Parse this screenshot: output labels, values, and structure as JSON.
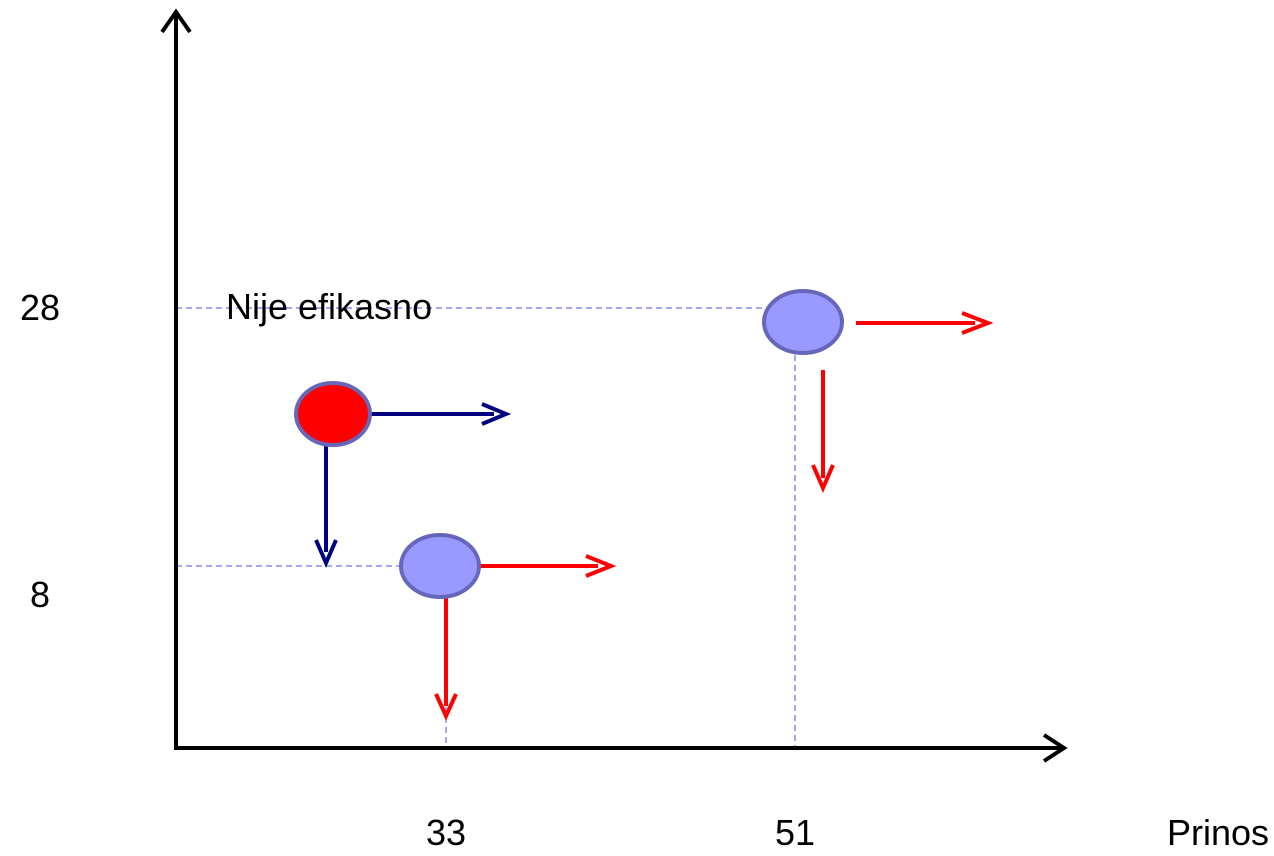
{
  "axes": {
    "y_ticks": [
      "28",
      "8"
    ],
    "x_ticks": [
      "33",
      "51"
    ],
    "x_label": "Prinos"
  },
  "annotation": "Nije efikasno",
  "points": [
    {
      "x": 51,
      "y": 28,
      "fill": "#9999ff",
      "role": "efficient"
    },
    {
      "x": 33,
      "y": 8,
      "fill": "#9999ff",
      "role": "efficient"
    },
    {
      "fill": "#ff0000",
      "role": "inefficient"
    }
  ],
  "colors": {
    "axis": "#000000",
    "guide": "#8888ee",
    "efficient_point": "#9999ff",
    "inefficient_point": "#ff0000",
    "point_stroke": "#6666bb",
    "red_arrow": "#ff0000",
    "blue_arrow": "#000080"
  }
}
